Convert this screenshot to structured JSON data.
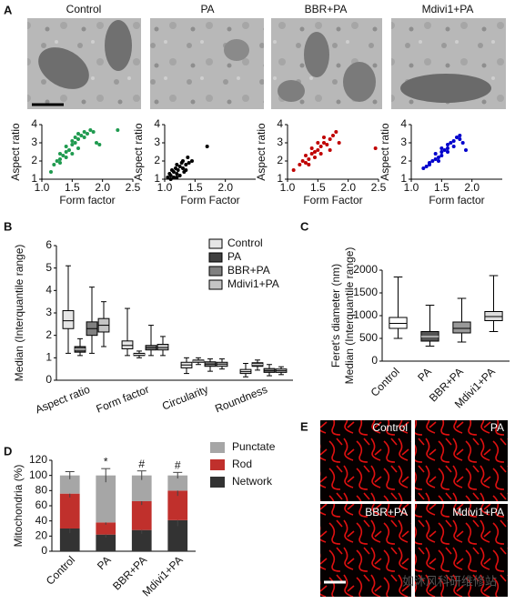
{
  "panel_letters": [
    "A",
    "B",
    "C",
    "D",
    "E"
  ],
  "panel_a": {
    "labels": [
      "Control",
      "PA",
      "BBR+PA",
      "Mdivi1+PA"
    ]
  },
  "panel_e": {
    "labels": [
      "Control",
      "PA",
      "BBR+PA",
      "Mdivi1+PA"
    ]
  },
  "watermark": "如沐风科研维修站",
  "chart_data": [
    {
      "type": "scatter",
      "x_label": "Form factor",
      "y_label": "Aspect ratio",
      "color": "#1f9a4f",
      "xlim": [
        1,
        2.5
      ],
      "xticks": [
        {
          "value": 1,
          "label": "1.0"
        },
        {
          "value": 1.5,
          "label": "1.5"
        },
        {
          "value": 2,
          "label": "2.0"
        },
        {
          "value": 2.5,
          "label": "2.5"
        }
      ],
      "ylim": [
        1,
        4
      ],
      "yticks": [
        1,
        2,
        3,
        4
      ],
      "x": [
        1.15,
        1.2,
        1.25,
        1.3,
        1.3,
        1.35,
        1.4,
        1.4,
        1.45,
        1.5,
        1.5,
        1.55,
        1.55,
        1.6,
        1.6,
        1.65,
        1.7,
        1.7,
        1.75,
        1.8,
        1.85,
        1.9,
        1.5,
        1.4,
        1.95,
        2.25,
        1.3,
        1.6
      ],
      "values": [
        1.4,
        1.8,
        2.0,
        2.1,
        2.4,
        2.3,
        2.5,
        2.8,
        2.6,
        2.9,
        3.1,
        3.0,
        3.3,
        3.2,
        3.5,
        3.4,
        3.6,
        3.3,
        3.5,
        3.7,
        3.6,
        3.0,
        2.4,
        2.2,
        2.9,
        3.7,
        1.9,
        2.7
      ]
    },
    {
      "type": "scatter",
      "x_label": "Form Factor",
      "y_label": "Aspect ratio",
      "color": "#000000",
      "xlim": [
        1,
        2.5
      ],
      "xticks": [
        {
          "value": 1,
          "label": "1.0"
        },
        {
          "value": 1.5,
          "label": "1.5"
        },
        {
          "value": 2,
          "label": "2.0"
        }
      ],
      "ylim": [
        1,
        4
      ],
      "yticks": [
        1,
        2,
        3,
        4
      ],
      "x": [
        1.05,
        1.08,
        1.1,
        1.12,
        1.15,
        1.15,
        1.18,
        1.2,
        1.2,
        1.22,
        1.25,
        1.25,
        1.28,
        1.3,
        1.3,
        1.32,
        1.35,
        1.38,
        1.4,
        1.1,
        1.2,
        1.45,
        1.7,
        1.35
      ],
      "values": [
        1.1,
        1.3,
        1.2,
        1.5,
        1.4,
        1.1,
        1.6,
        1.3,
        1.8,
        1.5,
        1.7,
        1.2,
        1.9,
        1.6,
        2.0,
        1.4,
        1.8,
        2.2,
        1.9,
        1.0,
        1.1,
        2.0,
        2.8,
        1.5
      ]
    },
    {
      "type": "scatter",
      "x_label": "Form Factor",
      "y_label": "Aspect ratio",
      "color": "#c00000",
      "xlim": [
        1,
        2.5
      ],
      "xticks": [
        {
          "value": 1,
          "label": "1.0"
        },
        {
          "value": 1.5,
          "label": "1.5"
        },
        {
          "value": 2,
          "label": "2.0"
        },
        {
          "value": 2.5,
          "label": "2.5"
        }
      ],
      "ylim": [
        1,
        4
      ],
      "yticks": [
        1,
        2,
        3,
        4
      ],
      "x": [
        1.1,
        1.2,
        1.25,
        1.3,
        1.3,
        1.35,
        1.4,
        1.4,
        1.45,
        1.5,
        1.5,
        1.55,
        1.6,
        1.6,
        1.65,
        1.7,
        1.75,
        1.8,
        1.85,
        1.35,
        1.45,
        1.55,
        2.45,
        1.7
      ],
      "values": [
        1.5,
        1.8,
        2.0,
        1.9,
        2.3,
        2.1,
        2.4,
        2.7,
        2.5,
        2.6,
        3.0,
        2.8,
        3.0,
        3.3,
        2.9,
        3.2,
        3.4,
        3.6,
        3.0,
        1.8,
        2.2,
        2.4,
        2.7,
        2.6
      ]
    },
    {
      "type": "scatter",
      "x_label": "Form factor",
      "y_label": "Aspect ratio",
      "color": "#0000cc",
      "xlim": [
        1,
        2.5
      ],
      "xticks": [
        {
          "value": 1,
          "label": "1.0"
        },
        {
          "value": 1.5,
          "label": "1.5"
        },
        {
          "value": 2,
          "label": "2.0"
        }
      ],
      "ylim": [
        1,
        4
      ],
      "yticks": [
        1,
        2,
        3,
        4
      ],
      "x": [
        1.2,
        1.25,
        1.3,
        1.35,
        1.4,
        1.4,
        1.45,
        1.5,
        1.5,
        1.55,
        1.6,
        1.6,
        1.65,
        1.7,
        1.7,
        1.75,
        1.8,
        1.85,
        1.9,
        1.3,
        1.5,
        1.6,
        1.8,
        1.45
      ],
      "values": [
        1.6,
        1.7,
        1.9,
        2.0,
        2.1,
        2.4,
        2.2,
        2.5,
        2.7,
        2.6,
        2.9,
        2.7,
        3.0,
        3.1,
        2.8,
        3.3,
        3.2,
        3.0,
        2.6,
        1.8,
        2.3,
        2.5,
        3.4,
        2.0
      ]
    },
    {
      "type": "box",
      "y_label": "Median (Interquantile range)",
      "categories": [
        "Aspect ratio",
        "Form factor",
        "Circularity",
        "Roundness"
      ],
      "ylim": [
        0,
        6
      ],
      "yticks": [
        0,
        1,
        2,
        3,
        4,
        5,
        6
      ],
      "series": [
        {
          "name": "Control",
          "color": "#e6e6e6",
          "values": [
            [
              1.2,
              2.3,
              2.65,
              3.1,
              5.1
            ],
            [
              1.1,
              1.4,
              1.55,
              1.75,
              3.2
            ],
            [
              0.3,
              0.55,
              0.68,
              0.8,
              1.0
            ],
            [
              0.15,
              0.3,
              0.38,
              0.48,
              0.75
            ]
          ]
        },
        {
          "name": "PA",
          "color": "#404040",
          "values": [
            [
              1.1,
              1.25,
              1.38,
              1.5,
              1.85
            ],
            [
              1.0,
              1.1,
              1.15,
              1.2,
              1.3
            ],
            [
              0.7,
              0.8,
              0.85,
              0.9,
              1.0
            ],
            [
              0.45,
              0.62,
              0.7,
              0.78,
              0.9
            ]
          ]
        },
        {
          "name": "BBR+PA",
          "color": "#808080",
          "values": [
            [
              1.2,
              2.0,
              2.3,
              2.6,
              4.15
            ],
            [
              1.1,
              1.35,
              1.45,
              1.55,
              2.45
            ],
            [
              0.4,
              0.62,
              0.72,
              0.82,
              0.95
            ],
            [
              0.2,
              0.35,
              0.42,
              0.52,
              0.7
            ]
          ]
        },
        {
          "name": "Mdivi1+PA",
          "color": "#c4c4c4",
          "values": [
            [
              1.5,
              2.15,
              2.45,
              2.75,
              3.5
            ],
            [
              1.1,
              1.35,
              1.45,
              1.6,
              1.95
            ],
            [
              0.5,
              0.62,
              0.72,
              0.8,
              0.95
            ],
            [
              0.25,
              0.35,
              0.42,
              0.5,
              0.6
            ]
          ]
        }
      ]
    },
    {
      "type": "box",
      "y_label": [
        "Feret's diameter (nm)",
        "Median (Interquantile range)"
      ],
      "categories": [
        "Control",
        "PA",
        "BBR+PA",
        "Mdivi1+PA"
      ],
      "ylim": [
        0,
        2000
      ],
      "yticks": [
        0,
        500,
        1000,
        1500,
        2000
      ],
      "series": [
        {
          "colors": [
            "#ffffff",
            "#555555",
            "#999999",
            "#dddddd"
          ],
          "values": [
            [
              500,
              720,
              830,
              960,
              1850
            ],
            [
              330,
              440,
              540,
              650,
              1230
            ],
            [
              420,
              620,
              720,
              860,
              1380
            ],
            [
              650,
              890,
              980,
              1090,
              1880
            ]
          ]
        }
      ]
    },
    {
      "type": "stacked_bar",
      "y_label": "Mitochondria (%)",
      "categories": [
        "Control",
        "PA",
        "BBR+PA",
        "Mdivi1+PA"
      ],
      "ylim": [
        0,
        120
      ],
      "yticks": [
        0,
        20,
        40,
        60,
        80,
        100,
        120
      ],
      "series": [
        {
          "name": "Network",
          "color": "#333333",
          "values": [
            30,
            22,
            28,
            41
          ],
          "errors": [
            6,
            4,
            5,
            8
          ]
        },
        {
          "name": "Rod",
          "color": "#c0302c",
          "values": [
            46,
            16,
            38,
            39
          ],
          "errors": [
            5,
            3,
            5,
            7
          ]
        },
        {
          "name": "Punctate",
          "color": "#a6a6a6",
          "values": [
            24,
            62,
            34,
            20
          ],
          "errors": [
            5,
            9,
            6,
            4
          ]
        }
      ],
      "annotations": [
        {
          "text": "*",
          "category": "PA"
        },
        {
          "text": "#",
          "category": "BBR+PA"
        },
        {
          "text": "#",
          "category": "Mdivi1+PA"
        }
      ]
    }
  ]
}
